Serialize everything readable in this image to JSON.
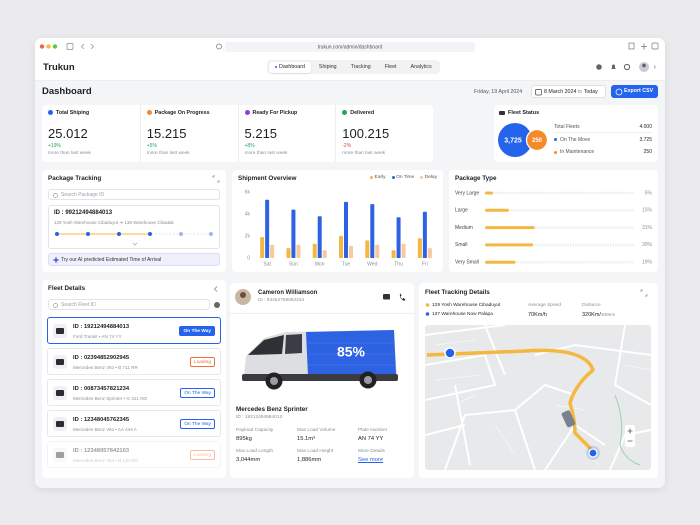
{
  "browser": {
    "url": "trukun.com/admin/dashboard"
  },
  "header": {
    "logo": "Trukun",
    "nav": [
      "Dashboard",
      "Shiping",
      "Tracking",
      "Fleet",
      "Analytics"
    ]
  },
  "toolbar": {
    "title": "Dashboard",
    "date": "Friday, 19 April 2024",
    "range_start": "8 March 2024",
    "range_sep": "to",
    "range_end": "Today",
    "export": "Export CSV"
  },
  "stats": [
    {
      "label": "Total Shiping",
      "value": "25.012",
      "change": "+19%",
      "note": "more than last week"
    },
    {
      "label": "Package On Progress",
      "value": "15.215",
      "change": "+5%",
      "note": "more than last week"
    },
    {
      "label": "Ready For Pickup",
      "value": "5.215",
      "change": "+8%",
      "note": "more than last week"
    },
    {
      "label": "Delivered",
      "value": "100.215",
      "change": "-2%",
      "note": "more than last week"
    }
  ],
  "fleet_status": {
    "title": "Fleet Status",
    "circles": [
      "3,725",
      "250"
    ],
    "rows": [
      {
        "label": "Total Fleets",
        "value": "4.000"
      },
      {
        "label": "On The Move",
        "value": "3.725"
      },
      {
        "label": "In Maintenance",
        "value": "250"
      }
    ]
  },
  "package_tracking": {
    "title": "Package Tracking",
    "search": "Search Package ID",
    "id": "ID : 99212494884013",
    "from": "129 Yosh Warehouse Cibaduyut",
    "to": "138 Warehouse Cibadak",
    "ai": "Try our AI predicted Estimated Time of Arrival"
  },
  "chart_data": [
    {
      "type": "bar",
      "title": "Shipment Overview",
      "categories": [
        "Sat",
        "Sun",
        "Mon",
        "Tue",
        "Wed",
        "Thu",
        "Fri"
      ],
      "series": [
        {
          "name": "Early",
          "color": "#f4b740",
          "values": [
            1900,
            900,
            1300,
            2000,
            1600,
            700,
            1800
          ]
        },
        {
          "name": "On Time",
          "color": "#2d62e3",
          "values": [
            5300,
            4400,
            3800,
            5100,
            4900,
            3700,
            4200
          ]
        },
        {
          "name": "Delay",
          "color": "#f7c99c",
          "values": [
            1200,
            1200,
            700,
            1100,
            1200,
            1300,
            900
          ]
        }
      ],
      "ylim": [
        0,
        6000
      ],
      "yticks": [
        0,
        {
          "value": 2000,
          "label": "2k"
        },
        {
          "value": 4000,
          "label": "4k"
        },
        {
          "value": 6000,
          "label": "6k"
        }
      ]
    },
    {
      "type": "hbar",
      "title": "Package Type",
      "categories": [
        "Very Large",
        "Large",
        "Medium",
        "Small",
        "Very Small"
      ],
      "values": [
        5,
        15,
        31,
        30,
        19
      ],
      "value_labels": [
        "5%",
        "15%",
        "31%",
        "30%",
        "19%"
      ],
      "color": "#f4b740"
    }
  ],
  "fleet_details": {
    "title": "Fleet Details",
    "search": "Search Fleet ID",
    "items": [
      {
        "id": "ID : 19212494884013",
        "vehicle": "Ford Transit • AN 74 YY",
        "status": "On The Way"
      },
      {
        "id": "ID : 02394852902945",
        "vehicle": "Mercedes Benz Vito • B 711 RR",
        "status": "Loading"
      },
      {
        "id": "ID : 00873457821234",
        "vehicle": "Mercedes Benz Sprinter • G 421 NO",
        "status": "On The Way"
      },
      {
        "id": "ID : 12348045762345",
        "vehicle": "Mercedes Benz Vito • AA 444 A",
        "status": "On The Way"
      },
      {
        "id": "ID : 12348957842103",
        "vehicle": "Mercedes Benz Vito • B 110 NO",
        "status": "Loading"
      }
    ]
  },
  "vehicle": {
    "driver": "Cameron Williamson",
    "driver_id": "ID : 83462758062234",
    "load": "85%",
    "model": "Mercedes Benz Sprinter",
    "id": "ID : 19212494884013",
    "specs": [
      {
        "label": "Payload Capacity",
        "value": "895kg"
      },
      {
        "label": "Max Load Volume",
        "value": "15.1m³"
      },
      {
        "label": "Plate Number",
        "value": "AN 74 YY"
      },
      {
        "label": "Max Load Length",
        "value": "3,044mm"
      },
      {
        "label": "Max Load Height",
        "value": "1,886mm"
      },
      {
        "label": "More Details",
        "value": "See more"
      }
    ]
  },
  "tracking": {
    "title": "Fleet Tracking Details",
    "from": "129 Yosh Warehouse Cibaduyut",
    "to": "137 Warehouse Now Palapa",
    "speed_label": "Average Speed",
    "speed": "70Km/h",
    "distance_label": "Distance",
    "distance": "320Km/",
    "distance_total": "300Km"
  }
}
